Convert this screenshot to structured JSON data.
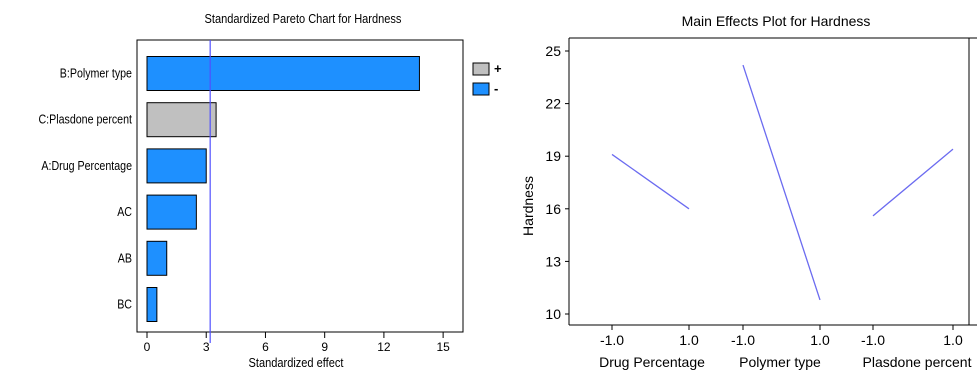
{
  "chart_data": [
    {
      "type": "bar",
      "orientation": "horizontal",
      "title": "Standardized Pareto Chart for Hardness",
      "xlabel": "Standardized effect",
      "ylabel": "",
      "categories": [
        "B:Polymer type",
        "C:Plasdone percent",
        "A:Drug Percentage",
        "AC",
        "AB",
        "BC"
      ],
      "values": [
        13.8,
        3.5,
        3.0,
        2.5,
        1.0,
        0.5
      ],
      "signs": [
        "-",
        "+",
        "-",
        "-",
        "-",
        "-"
      ],
      "xlim": [
        0,
        15.5
      ],
      "xticks": [
        0,
        3,
        6,
        9,
        12,
        15
      ],
      "reference_line": 3.2,
      "legend": {
        "placement": "right",
        "items": [
          {
            "label": "+",
            "color": "#c0c0c0"
          },
          {
            "label": "-",
            "color": "#1e90ff"
          }
        ]
      },
      "colors": {
        "+": "#c0c0c0",
        "-": "#1e90ff",
        "reference": "#5050ff"
      }
    },
    {
      "type": "line",
      "title": "Main Effects Plot for Hardness",
      "ylabel": "Hardness",
      "ylim": [
        10,
        25.3
      ],
      "yticks": [
        10,
        13,
        16,
        19,
        22,
        25
      ],
      "factors": [
        {
          "name": "Drug Percentage",
          "levels": [
            "-1.0",
            "1.0"
          ],
          "values": [
            19.1,
            16.0
          ]
        },
        {
          "name": "Polymer type",
          "levels": [
            "-1.0",
            "1.0"
          ],
          "values": [
            24.2,
            10.8
          ]
        },
        {
          "name": "Plasdone percent",
          "levels": [
            "-1.0",
            "1.0"
          ],
          "values": [
            15.6,
            19.4
          ]
        }
      ],
      "colors": {
        "line": "#6b6bf0"
      }
    }
  ]
}
